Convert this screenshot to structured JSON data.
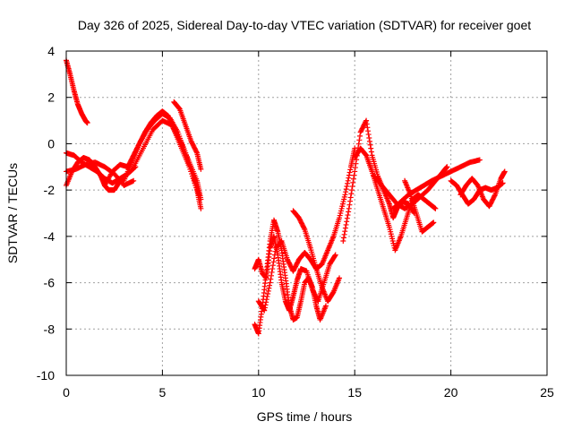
{
  "chart_data": {
    "type": "scatter",
    "title": "Day 326 of 2025, Sidereal Day-to-day VTEC variation (SDTVAR) for receiver goet",
    "xlabel": "GPS time / hours",
    "ylabel": "SDTVAR / TECUs",
    "xlim": [
      0,
      25
    ],
    "ylim": [
      -10,
      4
    ],
    "xticks": [
      0,
      5,
      10,
      15,
      20,
      25
    ],
    "yticks": [
      -10,
      -8,
      -6,
      -4,
      -2,
      0,
      2,
      4
    ],
    "grid": true,
    "marker": "+",
    "color": "#ff0000",
    "series": [
      {
        "x": [
          0.0,
          0.2,
          0.4,
          0.6,
          0.8,
          1.0,
          1.1
        ],
        "y": [
          3.6,
          3.0,
          2.3,
          1.7,
          1.3,
          1.0,
          0.9
        ]
      },
      {
        "x": [
          0.0,
          0.3,
          0.6,
          0.9,
          1.2,
          1.5,
          1.8,
          2.0,
          2.2,
          2.5,
          2.8,
          3.0
        ],
        "y": [
          -1.8,
          -1.2,
          -0.8,
          -0.6,
          -0.7,
          -1.0,
          -1.4,
          -1.8,
          -2.0,
          -2.0,
          -1.6,
          -1.5
        ]
      },
      {
        "x": [
          0.0,
          0.4,
          0.8,
          1.2,
          1.6,
          2.0,
          2.4,
          2.8,
          3.2,
          3.6
        ],
        "y": [
          -0.4,
          -0.5,
          -0.8,
          -1.0,
          -1.2,
          -1.5,
          -1.7,
          -1.5,
          -1.3,
          -1.0
        ]
      },
      {
        "x": [
          0.0,
          0.5,
          1.0,
          1.5,
          2.0,
          2.5,
          3.0,
          3.5
        ],
        "y": [
          -1.2,
          -1.1,
          -0.9,
          -0.8,
          -1.0,
          -1.3,
          -1.8,
          -1.6
        ]
      },
      {
        "x": [
          2.0,
          2.4,
          2.8,
          3.2,
          3.5,
          3.8,
          4.1,
          4.4,
          4.7,
          5.0,
          5.3,
          5.6,
          6.0,
          6.4,
          6.8,
          7.0
        ],
        "y": [
          -1.8,
          -1.2,
          -0.9,
          -1.0,
          -0.5,
          0.0,
          0.5,
          0.9,
          1.2,
          1.4,
          1.2,
          0.6,
          -0.2,
          -1.0,
          -2.0,
          -2.8
        ]
      },
      {
        "x": [
          3.0,
          3.4,
          3.8,
          4.2,
          4.6,
          5.0,
          5.4,
          5.8,
          6.2,
          6.6,
          6.9
        ],
        "y": [
          -1.6,
          -0.8,
          0.0,
          0.6,
          1.0,
          1.3,
          1.1,
          0.5,
          -0.4,
          -1.4,
          -2.2
        ]
      },
      {
        "x": [
          3.5,
          4.0,
          4.5,
          5.0,
          5.5,
          6.0,
          6.4,
          6.8,
          7.0
        ],
        "y": [
          -1.0,
          -0.2,
          0.6,
          1.0,
          0.8,
          0.0,
          -0.8,
          -1.6,
          -2.4
        ]
      },
      {
        "x": [
          5.6,
          5.9,
          6.2,
          6.5,
          6.8,
          7.0
        ],
        "y": [
          1.8,
          1.5,
          0.8,
          0.1,
          -0.4,
          -1.1
        ]
      },
      {
        "x": [
          9.8,
          10.0,
          10.2,
          10.4,
          10.6,
          10.8,
          11.0,
          11.2,
          11.4,
          11.6,
          11.8,
          12.0,
          12.2,
          12.4,
          12.6,
          12.8,
          13.0,
          13.2,
          13.5
        ],
        "y": [
          -7.8,
          -8.2,
          -7.0,
          -5.6,
          -4.2,
          -3.3,
          -3.8,
          -4.6,
          -5.8,
          -7.0,
          -7.6,
          -7.5,
          -6.8,
          -6.0,
          -5.8,
          -6.2,
          -7.0,
          -7.6,
          -7.0
        ]
      },
      {
        "x": [
          9.8,
          10.0,
          10.2,
          10.4,
          10.6,
          10.8,
          11.0,
          11.2,
          11.4,
          11.6,
          11.8,
          12.0,
          12.2,
          12.5,
          12.8,
          13.1,
          13.4,
          13.7,
          14.0
        ],
        "y": [
          -5.4,
          -5.0,
          -5.6,
          -5.8,
          -4.5,
          -4.0,
          -4.8,
          -6.0,
          -6.8,
          -7.2,
          -6.6,
          -5.9,
          -5.4,
          -5.5,
          -6.3,
          -6.8,
          -6.0,
          -5.2,
          -4.8
        ]
      },
      {
        "x": [
          10.0,
          10.3,
          10.6,
          10.9,
          11.2,
          11.5,
          11.8,
          12.1,
          12.4,
          12.7,
          13.0,
          13.3,
          13.6,
          13.9,
          14.2,
          14.5,
          14.8,
          15.0
        ],
        "y": [
          -6.8,
          -7.2,
          -6.0,
          -4.5,
          -4.2,
          -5.0,
          -5.5,
          -5.0,
          -4.7,
          -5.0,
          -5.4,
          -5.2,
          -4.6,
          -4.0,
          -3.2,
          -2.2,
          -1.0,
          -0.2
        ]
      },
      {
        "x": [
          11.8,
          12.1,
          12.4,
          12.7,
          13.0,
          13.3,
          13.6,
          13.9,
          14.2
        ],
        "y": [
          -2.9,
          -3.2,
          -3.7,
          -4.5,
          -5.4,
          -6.2,
          -6.8,
          -6.4,
          -5.8
        ]
      },
      {
        "x": [
          14.4,
          14.7,
          15.0,
          15.3,
          15.6,
          15.9,
          16.2,
          16.5,
          16.8,
          17.0,
          17.2,
          17.5,
          17.8,
          18.1
        ],
        "y": [
          -4.2,
          -2.8,
          -1.2,
          0.5,
          1.0,
          -0.5,
          -1.4,
          -2.0,
          -2.6,
          -3.2,
          -2.8,
          -2.5,
          -2.6,
          -3.0
        ]
      },
      {
        "x": [
          15.0,
          15.3,
          15.6,
          15.9,
          16.2,
          16.5,
          16.8,
          17.1,
          17.4,
          17.7,
          18.0,
          18.3,
          18.6,
          18.9,
          19.2
        ],
        "y": [
          -0.6,
          -0.2,
          -0.5,
          -1.2,
          -2.0,
          -2.8,
          -3.6,
          -4.6,
          -4.0,
          -3.2,
          -2.4,
          -2.2,
          -2.4,
          -2.6,
          -2.8
        ]
      },
      {
        "x": [
          16.0,
          16.4,
          16.8,
          17.2,
          17.6,
          18.0,
          18.4,
          18.8,
          19.2,
          19.6,
          19.8
        ],
        "y": [
          -1.4,
          -1.8,
          -2.2,
          -2.6,
          -2.8,
          -2.6,
          -2.3,
          -2.0,
          -1.6,
          -1.2,
          -1.0
        ]
      },
      {
        "x": [
          17.0,
          17.4,
          17.8,
          18.2,
          18.6,
          19.0,
          19.5,
          20.0,
          20.5,
          21.0,
          21.5
        ],
        "y": [
          -2.8,
          -2.5,
          -2.2,
          -2.0,
          -1.8,
          -1.6,
          -1.4,
          -1.2,
          -1.0,
          -0.8,
          -0.7
        ]
      },
      {
        "x": [
          17.6,
          17.9,
          18.2,
          18.5,
          18.8,
          19.1
        ],
        "y": [
          -1.6,
          -2.2,
          -3.0,
          -3.8,
          -3.6,
          -3.4
        ]
      },
      {
        "x": [
          20.0,
          20.3,
          20.6,
          20.9,
          21.2,
          21.5,
          21.8,
          22.1,
          22.4,
          22.7
        ],
        "y": [
          -1.6,
          -1.8,
          -2.2,
          -2.6,
          -2.4,
          -2.0,
          -1.9,
          -2.0,
          -1.9,
          -1.7
        ]
      },
      {
        "x": [
          20.5,
          20.8,
          21.1,
          21.4,
          21.7,
          22.0,
          22.3,
          22.6,
          22.8
        ],
        "y": [
          -2.2,
          -1.8,
          -1.5,
          -1.8,
          -2.4,
          -2.7,
          -2.2,
          -1.5,
          -1.2
        ]
      }
    ]
  }
}
